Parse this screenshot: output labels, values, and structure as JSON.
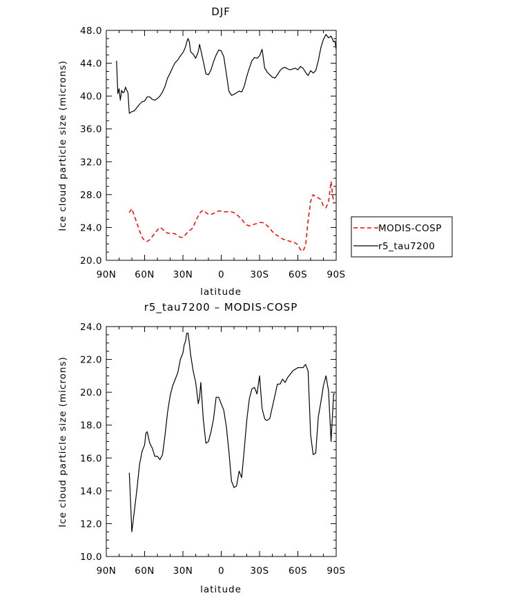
{
  "chart_data": [
    {
      "type": "line",
      "title": "DJF",
      "xlabel": "latitude",
      "ylabel": "Ice cloud particle size (microns)",
      "xlim": [
        -90,
        90
      ],
      "ylim": [
        20.0,
        48.0
      ],
      "xticks": [
        -90,
        -60,
        -30,
        0,
        30,
        60,
        90
      ],
      "xtick_labels": [
        "90N",
        "60N",
        "30N",
        "0",
        "30S",
        "60S",
        "90S"
      ],
      "yticks": [
        20,
        24,
        28,
        32,
        36,
        40,
        44,
        48
      ],
      "ytick_labels": [
        "20.0",
        "24.0",
        "28.0",
        "32.0",
        "36.0",
        "40.0",
        "44.0",
        "48.0"
      ],
      "legend": {
        "position": "right-outside"
      },
      "series": [
        {
          "name": "MODIS-COSP",
          "color": "#ff0000",
          "dash": "dashed",
          "x": [
            -72,
            -70,
            -68,
            -66,
            -64,
            -62,
            -60,
            -58,
            -56,
            -54,
            -52,
            -50,
            -48,
            -46,
            -44,
            -42,
            -40,
            -38,
            -36,
            -34,
            -32,
            -30,
            -28,
            -26,
            -24,
            -22,
            -20,
            -18,
            -16,
            -14,
            -12,
            -10,
            -8,
            -6,
            -4,
            -2,
            0,
            2,
            4,
            6,
            8,
            10,
            12,
            14,
            16,
            18,
            20,
            22,
            24,
            26,
            28,
            30,
            32,
            34,
            36,
            38,
            40,
            42,
            44,
            46,
            48,
            50,
            52,
            54,
            56,
            58,
            60,
            62,
            64,
            66,
            68,
            70,
            72,
            74,
            76,
            78,
            80,
            82,
            84,
            86,
            88
          ],
          "y": [
            25.8,
            26.3,
            25.4,
            24.5,
            23.6,
            22.8,
            22.4,
            22.3,
            22.5,
            22.9,
            23.3,
            23.7,
            24.0,
            23.8,
            23.5,
            23.3,
            23.3,
            23.3,
            23.2,
            23.0,
            22.8,
            22.8,
            23.1,
            23.5,
            23.7,
            24.0,
            24.8,
            25.4,
            25.9,
            26.1,
            25.8,
            25.6,
            25.6,
            25.7,
            25.9,
            26.0,
            26.0,
            25.9,
            25.9,
            25.9,
            25.9,
            25.8,
            25.6,
            25.3,
            25.0,
            24.6,
            24.3,
            24.2,
            24.3,
            24.4,
            24.5,
            24.6,
            24.6,
            24.5,
            24.2,
            23.9,
            23.5,
            23.2,
            23.0,
            22.8,
            22.6,
            22.5,
            22.4,
            22.3,
            22.3,
            22.1,
            21.9,
            21.3,
            21.1,
            21.8,
            24.8,
            27.2,
            28.0,
            27.7,
            27.6,
            27.4,
            26.6,
            26.4,
            27.1,
            29.6,
            26.9
          ]
        },
        {
          "name": "r5_tau7200",
          "color": "#000000",
          "dash": "solid",
          "x": [
            -82,
            -81,
            -80,
            -79,
            -78,
            -77,
            -76,
            -75,
            -74,
            -73,
            -72,
            -71,
            -70,
            -68,
            -66,
            -64,
            -62,
            -60,
            -58,
            -56,
            -54,
            -52,
            -50,
            -48,
            -46,
            -44,
            -42,
            -40,
            -38,
            -36,
            -34,
            -32,
            -30,
            -29,
            -28,
            -27,
            -26,
            -25,
            -24,
            -22,
            -20,
            -18,
            -17,
            -16,
            -14,
            -12,
            -10,
            -8,
            -6,
            -4,
            -2,
            0,
            2,
            4,
            6,
            8,
            10,
            12,
            14,
            16,
            18,
            20,
            22,
            24,
            26,
            28,
            30,
            32,
            34,
            35,
            36,
            38,
            40,
            42,
            44,
            46,
            48,
            50,
            52,
            54,
            56,
            58,
            60,
            62,
            64,
            66,
            68,
            70,
            72,
            74,
            76,
            78,
            80,
            82,
            84,
            86,
            88,
            89,
            90
          ],
          "y": [
            44.3,
            40.3,
            40.9,
            39.5,
            40.7,
            40.4,
            40.5,
            41.1,
            40.7,
            40.4,
            37.9,
            38.0,
            38.1,
            38.2,
            38.6,
            39.0,
            39.3,
            39.4,
            39.9,
            39.9,
            39.6,
            39.5,
            39.7,
            40.0,
            40.5,
            41.2,
            42.2,
            42.8,
            43.5,
            44.1,
            44.4,
            44.9,
            45.3,
            45.6,
            46.0,
            46.6,
            47.0,
            46.6,
            45.4,
            45.1,
            44.6,
            45.4,
            46.3,
            45.6,
            44.2,
            42.7,
            42.6,
            43.2,
            44.2,
            45.0,
            45.6,
            45.5,
            44.8,
            42.7,
            40.6,
            40.1,
            40.2,
            40.4,
            40.6,
            40.5,
            41.2,
            42.4,
            43.4,
            44.3,
            44.7,
            44.6,
            44.9,
            45.7,
            43.4,
            43.2,
            42.9,
            42.6,
            42.3,
            42.2,
            42.6,
            43.1,
            43.4,
            43.5,
            43.3,
            43.2,
            43.3,
            43.4,
            43.2,
            43.6,
            43.4,
            42.9,
            42.5,
            43.1,
            42.8,
            43.1,
            44.3,
            45.9,
            46.9,
            47.5,
            47.1,
            47.3,
            46.6,
            46.7,
            45.7
          ]
        }
      ]
    },
    {
      "type": "line",
      "title": "r5_tau7200 – MODIS-COSP",
      "xlabel": "latitude",
      "ylabel": "Ice cloud particle size (microns)",
      "xlim": [
        -90,
        90
      ],
      "ylim": [
        10.0,
        24.0
      ],
      "xticks": [
        -90,
        -60,
        -30,
        0,
        30,
        60,
        90
      ],
      "xtick_labels": [
        "90N",
        "60N",
        "30N",
        "0",
        "30S",
        "60S",
        "90S"
      ],
      "yticks": [
        10,
        12,
        14,
        16,
        18,
        20,
        22,
        24
      ],
      "ytick_labels": [
        "10.0",
        "12.0",
        "14.0",
        "16.0",
        "18.0",
        "20.0",
        "22.0",
        "24.0"
      ],
      "series": [
        {
          "name": "r5_tau7200 - MODIS-COSP",
          "color": "#000000",
          "dash": "solid",
          "x": [
            -72,
            -70,
            -68,
            -66,
            -64,
            -62,
            -60,
            -59,
            -58,
            -56,
            -54,
            -52,
            -50,
            -48,
            -46,
            -44,
            -42,
            -40,
            -38,
            -36,
            -34,
            -32,
            -30,
            -29,
            -28,
            -27,
            -26,
            -25,
            -24,
            -22,
            -20,
            -18,
            -17,
            -16,
            -14,
            -12,
            -10,
            -8,
            -6,
            -4,
            -2,
            0,
            2,
            4,
            6,
            8,
            10,
            12,
            14,
            16,
            18,
            20,
            22,
            24,
            26,
            28,
            30,
            32,
            34,
            35,
            36,
            38,
            40,
            42,
            44,
            46,
            48,
            50,
            52,
            54,
            56,
            58,
            60,
            62,
            64,
            66,
            68,
            70,
            72,
            74,
            76,
            78,
            80,
            82,
            84,
            86,
            88,
            89
          ],
          "y": [
            15.1,
            11.5,
            12.8,
            14.1,
            15.6,
            16.4,
            16.8,
            17.5,
            17.6,
            16.9,
            16.6,
            16.1,
            16.1,
            15.9,
            16.2,
            17.4,
            18.8,
            19.8,
            20.4,
            20.8,
            21.2,
            22.0,
            22.4,
            22.9,
            23.1,
            23.6,
            23.6,
            23.0,
            22.3,
            21.3,
            20.6,
            19.3,
            19.7,
            20.6,
            18.3,
            16.9,
            17.0,
            17.6,
            18.4,
            19.7,
            19.7,
            19.3,
            18.9,
            17.9,
            16.4,
            14.6,
            14.2,
            14.3,
            15.2,
            14.8,
            16.5,
            18.3,
            19.6,
            20.2,
            20.3,
            19.9,
            21.0,
            19.0,
            18.4,
            18.3,
            18.3,
            18.4,
            19.1,
            19.8,
            20.5,
            20.5,
            20.8,
            20.6,
            20.9,
            21.1,
            21.3,
            21.4,
            21.5,
            21.5,
            21.5,
            21.7,
            21.3,
            17.4,
            16.2,
            16.3,
            18.5,
            19.4,
            20.4,
            21.0,
            20.1,
            17.0,
            19.9,
            19.9
          ]
        }
      ]
    }
  ]
}
